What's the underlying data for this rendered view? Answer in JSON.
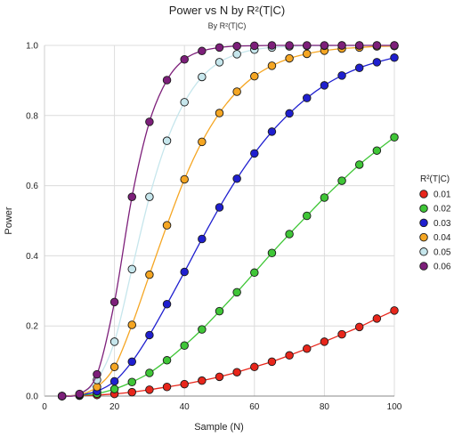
{
  "chart_data": {
    "type": "line",
    "title": "Power vs N by R²(T|C)",
    "subtitle": "By R²(T|C)",
    "xlabel": "Sample (N)",
    "ylabel": "Power",
    "xlim": [
      0,
      100
    ],
    "ylim": [
      0,
      1
    ],
    "xticks": [
      "0",
      "20",
      "40",
      "60",
      "80",
      "100"
    ],
    "yticks": [
      "0.0",
      "0.2",
      "0.4",
      "0.6",
      "0.8",
      "1.0"
    ],
    "grid": true,
    "legend": {
      "title": "R²(T|C)",
      "position": "right"
    },
    "x": [
      5,
      10,
      15,
      20,
      25,
      30,
      35,
      40,
      45,
      50,
      55,
      60,
      65,
      70,
      75,
      80,
      85,
      90,
      95,
      100
    ],
    "series": [
      {
        "name": "0.01",
        "color": "#e8261b",
        "values": [
          0.0,
          0.001,
          0.003,
          0.006,
          0.011,
          0.018,
          0.026,
          0.034,
          0.044,
          0.055,
          0.068,
          0.083,
          0.098,
          0.116,
          0.135,
          0.155,
          0.176,
          0.197,
          0.221,
          0.244
        ]
      },
      {
        "name": "0.02",
        "color": "#3fc637",
        "values": [
          0.0,
          0.002,
          0.007,
          0.02,
          0.04,
          0.066,
          0.102,
          0.144,
          0.19,
          0.242,
          0.296,
          0.352,
          0.408,
          0.462,
          0.514,
          0.566,
          0.614,
          0.66,
          0.7,
          0.738
        ]
      },
      {
        "name": "0.03",
        "color": "#1f1fcf",
        "values": [
          0.0,
          0.003,
          0.014,
          0.042,
          0.098,
          0.174,
          0.262,
          0.354,
          0.448,
          0.538,
          0.62,
          0.692,
          0.754,
          0.806,
          0.85,
          0.886,
          0.914,
          0.936,
          0.952,
          0.965
        ]
      },
      {
        "name": "0.04",
        "color": "#f5a623",
        "values": [
          0.0,
          0.004,
          0.026,
          0.083,
          0.203,
          0.346,
          0.487,
          0.618,
          0.725,
          0.807,
          0.868,
          0.912,
          0.942,
          0.963,
          0.976,
          0.985,
          0.991,
          0.994,
          0.997,
          0.998
        ]
      },
      {
        "name": "0.05",
        "color": "#c6e6ec",
        "values": [
          0.0,
          0.005,
          0.046,
          0.155,
          0.362,
          0.568,
          0.728,
          0.838,
          0.91,
          0.952,
          0.975,
          0.988,
          0.994,
          0.997,
          0.999,
          0.999,
          1.0,
          1.0,
          1.0,
          1.0
        ]
      },
      {
        "name": "0.06",
        "color": "#7d1f7a",
        "values": [
          0.0,
          0.006,
          0.062,
          0.268,
          0.568,
          0.782,
          0.901,
          0.96,
          0.984,
          0.994,
          0.998,
          0.999,
          1.0,
          1.0,
          1.0,
          1.0,
          1.0,
          1.0,
          1.0,
          1.0
        ]
      }
    ]
  }
}
